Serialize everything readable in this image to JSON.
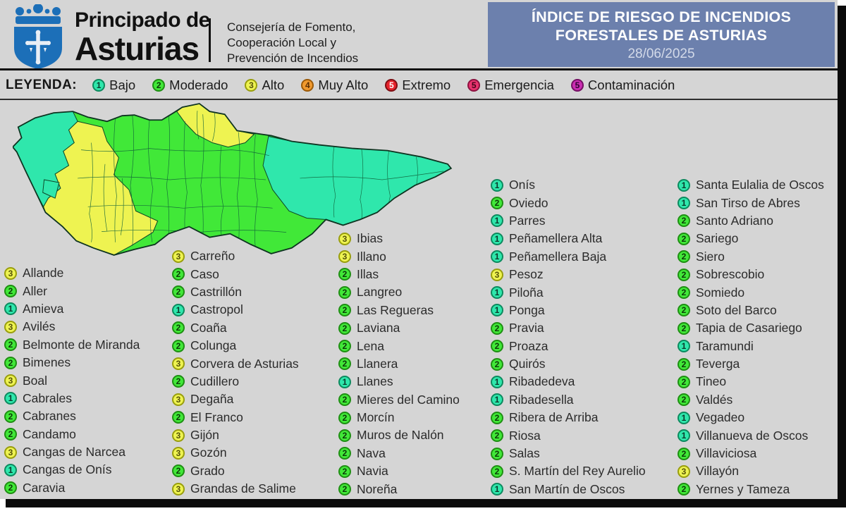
{
  "header": {
    "org_name_line1": "Principado de",
    "org_name_line2": "Asturias",
    "department_line1": "Consejería de Fomento,",
    "department_line2": "Cooperación Local y",
    "department_line3": "Prevención de Incendios",
    "title_line1": "ÍNDICE DE RIESGO DE INCENDIOS",
    "title_line2": "FORESTALES DE ASTURIAS",
    "date": "28/06/2025"
  },
  "colors": {
    "title_box": "#6c80ad",
    "title_date_text": "#d3dae9",
    "logo_blue": "#1c6fb8",
    "panel_bg": "#d5d5d5",
    "map_outline": "#0d3320",
    "map_inner_border": "#11603a"
  },
  "legend": {
    "label": "LEYENDA:",
    "items": [
      {
        "risk": "1",
        "name": "Bajo"
      },
      {
        "risk": "2",
        "name": "Moderado"
      },
      {
        "risk": "3",
        "name": "Alto"
      },
      {
        "risk": "4",
        "name": "Muy Alto"
      },
      {
        "risk": "5",
        "name": "Extremo"
      },
      {
        "risk": "5e",
        "name": "Emergencia"
      },
      {
        "risk": "5c",
        "name": "Contaminación"
      }
    ]
  },
  "risk_colors": {
    "1": "#2fe7ac",
    "2": "#41e838",
    "3": "#eef351",
    "4": "#f0992e",
    "5": "#e6232c",
    "5e": "#e9326e",
    "5c": "#ca2eb2"
  },
  "badge_border": {
    "1": "#0c8a5e",
    "2": "#1e8f12",
    "3": "#999e0c",
    "4": "#9c5a08",
    "5": "#7e0d12",
    "5e": "#8c1240",
    "5c": "#751064"
  },
  "badge_text": {
    "1": "#0b3a2b",
    "2": "#0c3a08",
    "3": "#55530a",
    "4": "#5a2e05",
    "5": "#ffffff",
    "5e": "#3f0418",
    "5c": "#2d0430"
  },
  "map": {
    "regions": [
      {
        "name": "central",
        "risk": "2"
      },
      {
        "name": "west-coast",
        "risk": "1"
      },
      {
        "name": "west-coast-patch",
        "risk": "1"
      },
      {
        "name": "southwest",
        "risk": "3"
      },
      {
        "name": "cape-penas-north",
        "risk": "3"
      },
      {
        "name": "east",
        "risk": "1"
      }
    ]
  },
  "municipalities": {
    "columns": [
      {
        "items": [
          {
            "r": "3",
            "n": "Allande"
          },
          {
            "r": "2",
            "n": "Aller"
          },
          {
            "r": "1",
            "n": "Amieva"
          },
          {
            "r": "3",
            "n": "Avilés"
          },
          {
            "r": "2",
            "n": "Belmonte de Miranda"
          },
          {
            "r": "2",
            "n": "Bimenes"
          },
          {
            "r": "3",
            "n": "Boal"
          },
          {
            "r": "1",
            "n": "Cabrales"
          },
          {
            "r": "2",
            "n": "Cabranes"
          },
          {
            "r": "2",
            "n": "Candamo"
          },
          {
            "r": "3",
            "n": "Cangas de Narcea"
          },
          {
            "r": "1",
            "n": "Cangas de Onís"
          },
          {
            "r": "2",
            "n": "Caravia"
          }
        ]
      },
      {
        "items": [
          {
            "r": "3",
            "n": "Carreño"
          },
          {
            "r": "2",
            "n": "Caso"
          },
          {
            "r": "2",
            "n": "Castrillón"
          },
          {
            "r": "1",
            "n": "Castropol"
          },
          {
            "r": "2",
            "n": "Coaña"
          },
          {
            "r": "2",
            "n": "Colunga"
          },
          {
            "r": "3",
            "n": "Corvera de Asturias"
          },
          {
            "r": "2",
            "n": "Cudillero"
          },
          {
            "r": "3",
            "n": "Degaña"
          },
          {
            "r": "2",
            "n": "El Franco"
          },
          {
            "r": "3",
            "n": "Gijón"
          },
          {
            "r": "3",
            "n": "Gozón"
          },
          {
            "r": "2",
            "n": "Grado"
          },
          {
            "r": "3",
            "n": "Grandas de Salime"
          }
        ]
      },
      {
        "items": [
          {
            "r": "3",
            "n": "Ibias"
          },
          {
            "r": "3",
            "n": "Illano"
          },
          {
            "r": "2",
            "n": "Illas"
          },
          {
            "r": "2",
            "n": "Langreo"
          },
          {
            "r": "2",
            "n": "Las Regueras"
          },
          {
            "r": "2",
            "n": "Laviana"
          },
          {
            "r": "2",
            "n": "Lena"
          },
          {
            "r": "2",
            "n": "Llanera"
          },
          {
            "r": "1",
            "n": "Llanes"
          },
          {
            "r": "2",
            "n": "Mieres del Camino"
          },
          {
            "r": "2",
            "n": "Morcín"
          },
          {
            "r": "2",
            "n": "Muros de Nalón"
          },
          {
            "r": "2",
            "n": "Nava"
          },
          {
            "r": "2",
            "n": "Navia"
          },
          {
            "r": "2",
            "n": "Noreña"
          }
        ]
      },
      {
        "items": [
          {
            "r": "1",
            "n": "Onís"
          },
          {
            "r": "2",
            "n": "Oviedo"
          },
          {
            "r": "1",
            "n": "Parres"
          },
          {
            "r": "1",
            "n": "Peñamellera Alta"
          },
          {
            "r": "1",
            "n": "Peñamellera Baja"
          },
          {
            "r": "3",
            "n": "Pesoz"
          },
          {
            "r": "1",
            "n": "Piloña"
          },
          {
            "r": "1",
            "n": "Ponga"
          },
          {
            "r": "2",
            "n": "Pravia"
          },
          {
            "r": "2",
            "n": "Proaza"
          },
          {
            "r": "2",
            "n": "Quirós"
          },
          {
            "r": "1",
            "n": "Ribadedeva"
          },
          {
            "r": "1",
            "n": "Ribadesella"
          },
          {
            "r": "2",
            "n": "Ribera de Arriba"
          },
          {
            "r": "2",
            "n": "Riosa"
          },
          {
            "r": "2",
            "n": "Salas"
          },
          {
            "r": "2",
            "n": "S. Martín del Rey Aurelio"
          },
          {
            "r": "1",
            "n": "San Martín de Oscos"
          }
        ]
      },
      {
        "items": [
          {
            "r": "1",
            "n": "Santa Eulalia de Oscos"
          },
          {
            "r": "1",
            "n": "San Tirso de Abres"
          },
          {
            "r": "2",
            "n": "Santo Adriano"
          },
          {
            "r": "2",
            "n": "Sariego"
          },
          {
            "r": "2",
            "n": "Siero"
          },
          {
            "r": "2",
            "n": "Sobrescobio"
          },
          {
            "r": "2",
            "n": "Somiedo"
          },
          {
            "r": "2",
            "n": "Soto del Barco"
          },
          {
            "r": "2",
            "n": "Tapia de Casariego"
          },
          {
            "r": "1",
            "n": "Taramundi"
          },
          {
            "r": "2",
            "n": "Teverga"
          },
          {
            "r": "2",
            "n": "Tineo"
          },
          {
            "r": "2",
            "n": "Valdés"
          },
          {
            "r": "1",
            "n": "Vegadeo"
          },
          {
            "r": "1",
            "n": "Villanueva de Oscos"
          },
          {
            "r": "2",
            "n": "Villaviciosa"
          },
          {
            "r": "3",
            "n": "Villayón"
          },
          {
            "r": "2",
            "n": "Yernes y Tameza"
          }
        ]
      }
    ]
  }
}
